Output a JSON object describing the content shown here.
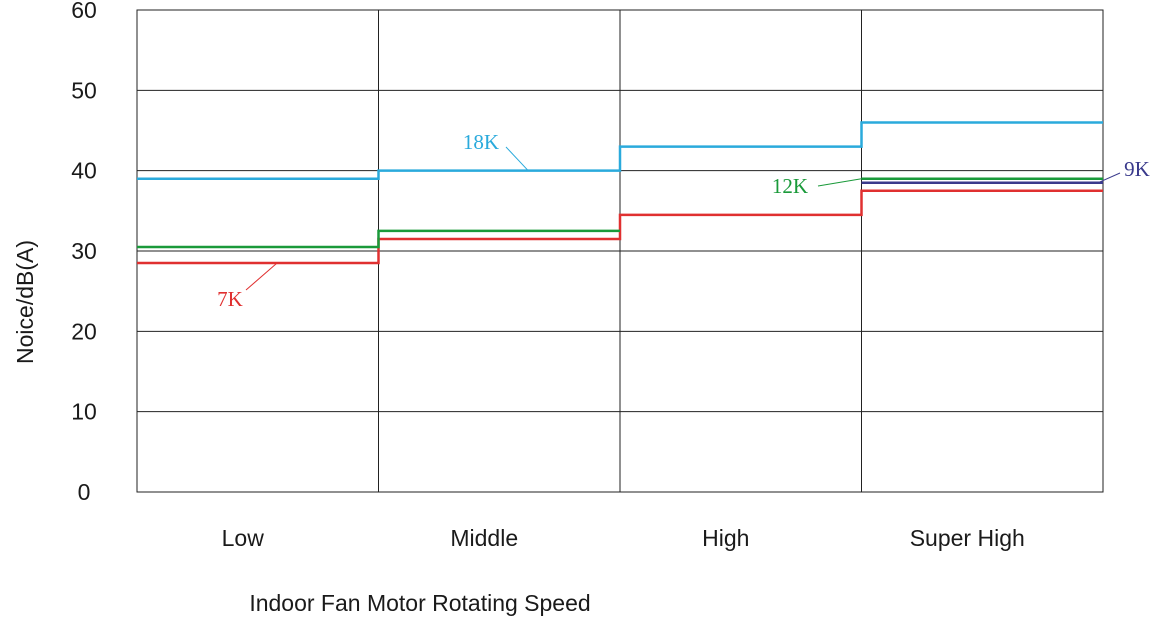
{
  "chart_data": {
    "type": "line",
    "step": true,
    "categories": [
      "Low",
      "Middle",
      "High",
      "Super High"
    ],
    "xlabel": "Indoor Fan Motor Rotating Speed",
    "ylabel": "Noice/dB(A)",
    "ylim": [
      0,
      60
    ],
    "yticks": [
      "0",
      "10",
      "20",
      "30",
      "40",
      "50",
      "60"
    ],
    "grid": true,
    "series": [
      {
        "name": "7K",
        "color": "#e03030",
        "values": [
          28.5,
          31.5,
          34.5,
          37.5
        ]
      },
      {
        "name": "9K",
        "color": "#3a3a8c",
        "values": [
          null,
          null,
          null,
          38.5
        ]
      },
      {
        "name": "12K",
        "color": "#1a9a3a",
        "values": [
          30.5,
          32.5,
          null,
          39.0
        ]
      },
      {
        "name": "18K",
        "color": "#2aaadc",
        "values": [
          39.0,
          40.0,
          43.0,
          46.0
        ]
      }
    ]
  }
}
